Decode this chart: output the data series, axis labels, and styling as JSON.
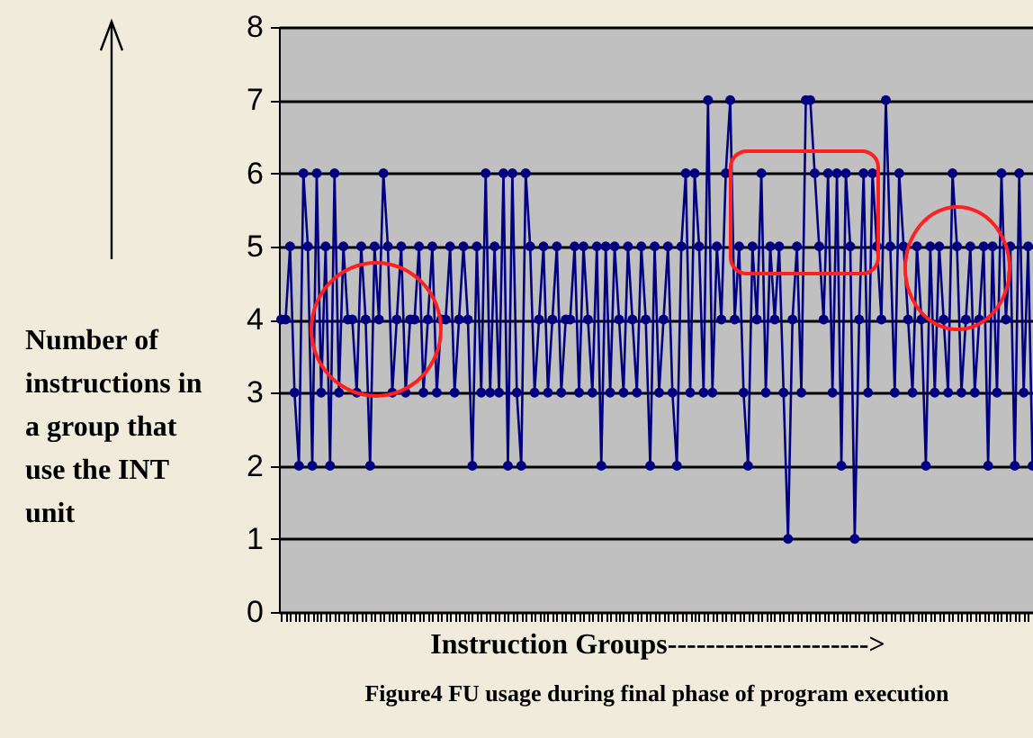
{
  "chart_data": {
    "type": "line",
    "title": "Figure4 FU usage during final phase of program execution",
    "xlabel": "Instruction Groups--------------------->",
    "ylabel": "Number of instructions in a group that use the INT unit",
    "categories": [
      null,
      null,
      null,
      null,
      null,
      null,
      null,
      null,
      null,
      null,
      null,
      null,
      null,
      null,
      null,
      null,
      null,
      null,
      null,
      null,
      null,
      null,
      null,
      null,
      null,
      null,
      null,
      null,
      null,
      null,
      null,
      null,
      null,
      null,
      null,
      null,
      null,
      null,
      null,
      null,
      null,
      null,
      null,
      null,
      null,
      null,
      null,
      null,
      null,
      null,
      null,
      null,
      null,
      null,
      null,
      null,
      null,
      null,
      null,
      null,
      null,
      null,
      null,
      null,
      null,
      null,
      null,
      null,
      null,
      null,
      null,
      null,
      null,
      null,
      null,
      null,
      null,
      null,
      null,
      null,
      null,
      null,
      null,
      null,
      null,
      null,
      null,
      null,
      null,
      null,
      null,
      null,
      null,
      null,
      null,
      null,
      null,
      null,
      null,
      null,
      null,
      null,
      null,
      null,
      null,
      null,
      null,
      null,
      null,
      null,
      null,
      null,
      null,
      null,
      null,
      null,
      null,
      null,
      null,
      null,
      null,
      null,
      null,
      null,
      null,
      null,
      null,
      null,
      null,
      null,
      null,
      null,
      null,
      null,
      null,
      null,
      null,
      null,
      null,
      null,
      null,
      null,
      null,
      null,
      null,
      null,
      null,
      null,
      null,
      null,
      null,
      null,
      null,
      null,
      null,
      null,
      null,
      null,
      null,
      null,
      null,
      null,
      null,
      null,
      null,
      null,
      null,
      null,
      null,
      null
    ],
    "series": [
      {
        "color": "#000080",
        "values": [
          4,
          4,
          5,
          3,
          2,
          6,
          5,
          2,
          6,
          3,
          5,
          2,
          6,
          3,
          5,
          4,
          4,
          3,
          5,
          4,
          2,
          5,
          4,
          6,
          5,
          3,
          4,
          5,
          3,
          4,
          4,
          5,
          3,
          4,
          5,
          3,
          4,
          4,
          5,
          3,
          4,
          5,
          4,
          2,
          5,
          3,
          6,
          3,
          5,
          3,
          6,
          2,
          6,
          3,
          2,
          6,
          5,
          3,
          4,
          5,
          3,
          4,
          5,
          3,
          4,
          4,
          5,
          3,
          5,
          4,
          3,
          5,
          2,
          5,
          3,
          5,
          4,
          3,
          5,
          4,
          3,
          5,
          4,
          2,
          5,
          3,
          4,
          5,
          3,
          2,
          5,
          6,
          3,
          6,
          5,
          3,
          7,
          3,
          5,
          4,
          6,
          7,
          4,
          5,
          3,
          2,
          5,
          4,
          6,
          3,
          5,
          4,
          5,
          3,
          1,
          4,
          5,
          3,
          7,
          7,
          6,
          5,
          4,
          6,
          3,
          6,
          2,
          6,
          5,
          1,
          4,
          6,
          3,
          6,
          5,
          4,
          7,
          5,
          3,
          6,
          5,
          4,
          3,
          5,
          4,
          2,
          5,
          3,
          5,
          4,
          3,
          6,
          5,
          3,
          4,
          5,
          3,
          4,
          5,
          2,
          5,
          3,
          6,
          4,
          5,
          2,
          6,
          3,
          5,
          2
        ]
      }
    ],
    "ylim": [
      0,
      8
    ],
    "yticks": [
      0,
      1,
      2,
      3,
      4,
      5,
      6,
      7,
      8
    ],
    "grid": "y",
    "marker": "circle",
    "tick_labels": "y"
  }
}
